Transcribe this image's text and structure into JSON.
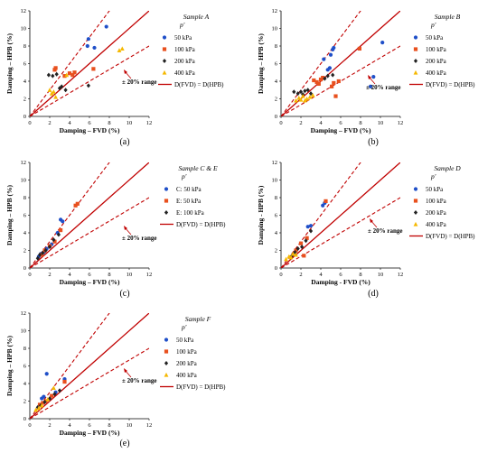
{
  "figure": {
    "panel_labels": [
      "(a)",
      "(b)",
      "(c)",
      "(d)",
      "(e)"
    ]
  },
  "chart_data": [
    {
      "type": "scatter",
      "panel": "(a)",
      "sample_label": "Sample A",
      "legend_subtitle": "p'",
      "xlabel": "Damping – FVD (%)",
      "ylabel": "Damping – HPB (%)",
      "xlim": [
        0,
        12
      ],
      "ylim": [
        0,
        12
      ],
      "xticks": [
        0,
        2,
        4,
        6,
        8,
        10,
        12
      ],
      "yticks": [
        0,
        2,
        4,
        6,
        8,
        10,
        12
      ],
      "range_annotation": "± 20% range",
      "equality_label": "D(FVD) = D(HPB)",
      "series": [
        {
          "name": "50 kPa",
          "marker": "circle",
          "color": "#1f4fc8",
          "points": [
            [
              5.8,
              8.0
            ],
            [
              5.9,
              8.8
            ],
            [
              6.5,
              7.8
            ],
            [
              7.7,
              10.2
            ]
          ]
        },
        {
          "name": "100 kPa",
          "marker": "square",
          "color": "#e8501e",
          "points": [
            [
              2.5,
              5.3
            ],
            [
              2.6,
              5.5
            ],
            [
              3.5,
              4.6
            ],
            [
              4.0,
              4.9
            ],
            [
              4.3,
              4.7
            ],
            [
              4.5,
              5.0
            ],
            [
              6.4,
              5.4
            ]
          ]
        },
        {
          "name": "200 kPa",
          "marker": "diamond",
          "color": "#222222",
          "points": [
            [
              1.9,
              4.7
            ],
            [
              2.3,
              4.6
            ],
            [
              2.7,
              4.8
            ],
            [
              3.0,
              3.2
            ],
            [
              3.2,
              3.4
            ],
            [
              3.6,
              3.0
            ],
            [
              5.9,
              3.5
            ]
          ]
        },
        {
          "name": "400 kPa",
          "marker": "triangle",
          "color": "#f5b800",
          "points": [
            [
              2.0,
              3.0
            ],
            [
              2.2,
              2.6
            ],
            [
              2.4,
              2.8
            ],
            [
              2.6,
              2.2
            ],
            [
              3.7,
              4.7
            ],
            [
              9.0,
              7.5
            ],
            [
              9.3,
              7.7
            ]
          ]
        }
      ]
    },
    {
      "type": "scatter",
      "panel": "(b)",
      "sample_label": "Sample B",
      "legend_subtitle": "p'",
      "xlabel": "Damping – FVD (%)",
      "ylabel": "Damping – HPB (%)",
      "xlim": [
        0,
        12
      ],
      "ylim": [
        0,
        12
      ],
      "xticks": [
        0,
        2,
        4,
        6,
        8,
        10,
        12
      ],
      "yticks": [
        0,
        2,
        4,
        6,
        8,
        10,
        12
      ],
      "range_annotation": "± 20% range",
      "equality_label": "D(FVD) = D(HPB)",
      "series": [
        {
          "name": "50 kPa",
          "marker": "circle",
          "color": "#1f4fc8",
          "points": [
            [
              4.3,
              6.5
            ],
            [
              4.7,
              5.3
            ],
            [
              4.9,
              5.5
            ],
            [
              5.0,
              7.0
            ],
            [
              5.2,
              7.6
            ],
            [
              5.3,
              7.8
            ],
            [
              9.3,
              4.5
            ],
            [
              10.2,
              8.4
            ],
            [
              9.0,
              3.4
            ]
          ]
        },
        {
          "name": "100 kPa",
          "marker": "square",
          "color": "#e8501e",
          "points": [
            [
              3.3,
              4.1
            ],
            [
              3.6,
              3.9
            ],
            [
              3.8,
              3.7
            ],
            [
              4.0,
              4.2
            ],
            [
              4.2,
              4.4
            ],
            [
              5.1,
              3.4
            ],
            [
              5.3,
              3.8
            ],
            [
              5.5,
              2.3
            ],
            [
              5.8,
              4.0
            ],
            [
              7.9,
              7.7
            ]
          ]
        },
        {
          "name": "200 kPa",
          "marker": "diamond",
          "color": "#222222",
          "points": [
            [
              1.3,
              2.8
            ],
            [
              1.7,
              2.6
            ],
            [
              2.0,
              2.8
            ],
            [
              2.2,
              2.5
            ],
            [
              2.4,
              2.9
            ],
            [
              2.7,
              3.0
            ],
            [
              3.0,
              2.6
            ],
            [
              4.4,
              4.3
            ],
            [
              4.7,
              4.6
            ],
            [
              5.2,
              4.7
            ]
          ]
        },
        {
          "name": "400 kPa",
          "marker": "triangle",
          "color": "#f5b800",
          "points": [
            [
              1.5,
              1.8
            ],
            [
              1.8,
              2.1
            ],
            [
              2.0,
              1.9
            ],
            [
              2.2,
              2.3
            ],
            [
              2.4,
              1.8
            ],
            [
              2.6,
              2.0
            ],
            [
              2.9,
              2.2
            ],
            [
              3.2,
              2.4
            ]
          ]
        }
      ]
    },
    {
      "type": "scatter",
      "panel": "(c)",
      "sample_label": "Sample C & E",
      "legend_subtitle": "p'",
      "xlabel": "Damping – FVD (%)",
      "ylabel": "Damping – HPB (%)",
      "xlim": [
        0,
        12
      ],
      "ylim": [
        0,
        12
      ],
      "xticks": [
        0,
        2,
        4,
        6,
        8,
        10,
        12
      ],
      "yticks": [
        0,
        2,
        4,
        6,
        8,
        10,
        12
      ],
      "range_annotation": "± 20% range",
      "equality_label": "D(FVD) = D(HPB)",
      "series": [
        {
          "name": "C: 50 kPa",
          "marker": "circle",
          "color": "#1f4fc8",
          "points": [
            [
              0.9,
              1.3
            ],
            [
              1.1,
              1.6
            ],
            [
              1.4,
              1.8
            ],
            [
              1.7,
              2.2
            ],
            [
              2.2,
              2.7
            ],
            [
              2.8,
              4.0
            ],
            [
              3.1,
              5.5
            ],
            [
              3.3,
              5.3
            ]
          ]
        },
        {
          "name": "E: 50 kPa",
          "marker": "square",
          "color": "#e8501e",
          "points": [
            [
              1.2,
              1.5
            ],
            [
              1.5,
              2.0
            ],
            [
              2.0,
              2.5
            ],
            [
              2.5,
              3.0
            ],
            [
              3.1,
              4.3
            ],
            [
              4.6,
              7.1
            ],
            [
              4.8,
              7.3
            ]
          ]
        },
        {
          "name": "E: 100 kPa",
          "marker": "diamond",
          "color": "#222222",
          "points": [
            [
              0.8,
              1.1
            ],
            [
              1.0,
              1.5
            ],
            [
              1.3,
              1.7
            ],
            [
              1.6,
              2.0
            ],
            [
              2.0,
              2.4
            ],
            [
              2.4,
              3.2
            ],
            [
              2.9,
              3.8
            ]
          ]
        }
      ]
    },
    {
      "type": "scatter",
      "panel": "(d)",
      "sample_label": "Sample D",
      "legend_subtitle": "p'",
      "xlabel": "Damping - FVD (%)",
      "ylabel": "Damping - HPB (%)",
      "xlim": [
        0,
        12
      ],
      "ylim": [
        0,
        12
      ],
      "xticks": [
        0,
        2,
        4,
        6,
        8,
        10,
        12
      ],
      "yticks": [
        0,
        2,
        4,
        6,
        8,
        10,
        12
      ],
      "range_annotation": "± 20% range",
      "equality_label": "D(FVD) = D(HPB)",
      "series": [
        {
          "name": "50 kPa",
          "marker": "circle",
          "color": "#1f4fc8",
          "points": [
            [
              2.7,
              4.7
            ],
            [
              3.0,
              4.8
            ],
            [
              4.2,
              7.1
            ],
            [
              4.4,
              7.4
            ]
          ]
        },
        {
          "name": "100 kPa",
          "marker": "square",
          "color": "#e8501e",
          "points": [
            [
              1.5,
              2.0
            ],
            [
              2.0,
              2.8
            ],
            [
              2.3,
              1.4
            ],
            [
              2.6,
              3.4
            ],
            [
              4.5,
              7.6
            ]
          ]
        },
        {
          "name": "200 kPa",
          "marker": "diamond",
          "color": "#222222",
          "points": [
            [
              1.1,
              1.4
            ],
            [
              1.4,
              1.8
            ],
            [
              1.7,
              2.2
            ],
            [
              2.1,
              2.4
            ],
            [
              2.5,
              3.1
            ],
            [
              3.0,
              4.2
            ]
          ]
        },
        {
          "name": "400 kPa",
          "marker": "triangle",
          "color": "#f5b800",
          "points": [
            [
              0.5,
              1.0
            ],
            [
              0.8,
              1.3
            ],
            [
              1.0,
              1.2
            ],
            [
              1.2,
              1.6
            ],
            [
              1.5,
              1.5
            ]
          ]
        }
      ]
    },
    {
      "type": "scatter",
      "panel": "(e)",
      "sample_label": "Sample F",
      "legend_subtitle": "p'",
      "xlabel": "Damping – FVD (%)",
      "ylabel": "Damping – HPB (%)",
      "xlim": [
        0,
        12
      ],
      "ylim": [
        0,
        12
      ],
      "xticks": [
        0,
        2,
        4,
        6,
        8,
        10,
        12
      ],
      "yticks": [
        0,
        2,
        4,
        6,
        8,
        10,
        12
      ],
      "range_annotation": "± 20% range",
      "equality_label": "D(FVD) = D(HPB)",
      "series": [
        {
          "name": "50 kPa",
          "marker": "circle",
          "color": "#1f4fc8",
          "points": [
            [
              1.2,
              2.3
            ],
            [
              1.4,
              2.5
            ],
            [
              1.7,
              5.1
            ],
            [
              2.6,
              3.0
            ],
            [
              3.5,
              4.5
            ]
          ]
        },
        {
          "name": "100 kPa",
          "marker": "square",
          "color": "#e8501e",
          "points": [
            [
              1.0,
              1.6
            ],
            [
              1.3,
              1.8
            ],
            [
              1.6,
              2.0
            ],
            [
              2.2,
              2.6
            ],
            [
              3.5,
              4.2
            ]
          ]
        },
        {
          "name": "200 kPa",
          "marker": "diamond",
          "color": "#222222",
          "points": [
            [
              0.8,
              1.3
            ],
            [
              1.1,
              1.5
            ],
            [
              1.5,
              1.9
            ],
            [
              2.0,
              2.3
            ],
            [
              2.5,
              2.8
            ],
            [
              3.0,
              3.2
            ]
          ]
        },
        {
          "name": "400 kPa",
          "marker": "triangle",
          "color": "#f5b800",
          "points": [
            [
              0.6,
              1.0
            ],
            [
              0.9,
              1.2
            ],
            [
              1.2,
              1.5
            ],
            [
              1.8,
              2.2
            ],
            [
              2.4,
              3.5
            ]
          ]
        }
      ]
    }
  ]
}
